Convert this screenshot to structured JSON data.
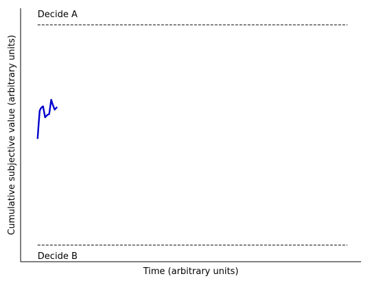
{
  "chart_data": {
    "type": "line",
    "title": "",
    "xlabel": "Time (arbitrary units)",
    "ylabel": "Cumulative subjective value (arbitrary units)",
    "xlim": [
      0,
      100
    ],
    "ylim": [
      -1.15,
      1.15
    ],
    "grid": false,
    "thresholds": [
      {
        "label": "Decide A",
        "value": 1.0,
        "x_start": 5,
        "x_end": 96
      },
      {
        "label": "Decide B",
        "value": -1.0,
        "x_start": 5,
        "x_end": 96
      }
    ],
    "series": [
      {
        "color": "#0000cc",
        "x": [
          5,
          5.3,
          5.6,
          6,
          6.6,
          7.2,
          7.8,
          8.4,
          9,
          9.4,
          10,
          10.6
        ],
        "y": [
          -0.03,
          0.1,
          0.22,
          0.245,
          0.26,
          0.16,
          0.18,
          0.19,
          0.32,
          0.28,
          0.23,
          0.25
        ]
      }
    ]
  }
}
